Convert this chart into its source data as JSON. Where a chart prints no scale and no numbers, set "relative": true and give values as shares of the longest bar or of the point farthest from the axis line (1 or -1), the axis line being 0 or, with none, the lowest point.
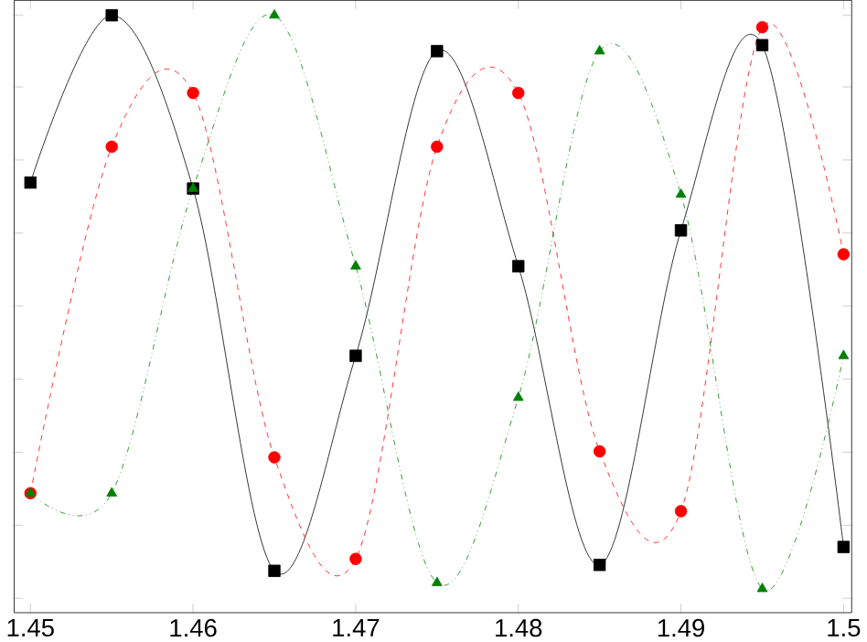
{
  "chart_data": {
    "type": "line",
    "relative": true,
    "grid": false,
    "x": [
      1.45,
      1.455,
      1.46,
      1.465,
      1.47,
      1.475,
      1.48,
      1.485,
      1.49,
      1.495,
      1.5
    ],
    "xlim": [
      1.449,
      1.5005
    ],
    "xticks": [
      1.45,
      1.46,
      1.47,
      1.48,
      1.49,
      1.5
    ],
    "series": [
      {
        "color": "#000000",
        "marker": "square",
        "line_style": "solid",
        "values": [
          0.72,
          1.0,
          0.71,
          0.07,
          0.43,
          0.94,
          0.58,
          0.08,
          0.64,
          0.95,
          0.11
        ]
      },
      {
        "color": "#ff0000",
        "marker": "circle",
        "line_style": "dashed",
        "values": [
          0.2,
          0.78,
          0.87,
          0.26,
          0.09,
          0.78,
          0.87,
          0.27,
          0.17,
          0.98,
          0.6
        ]
      },
      {
        "color": "#008000",
        "marker": "triangle",
        "line_style": "dotted",
        "values": [
          0.2,
          0.2,
          0.71,
          1.0,
          0.58,
          0.05,
          0.36,
          0.94,
          0.7,
          0.04,
          0.43
        ]
      }
    ]
  }
}
